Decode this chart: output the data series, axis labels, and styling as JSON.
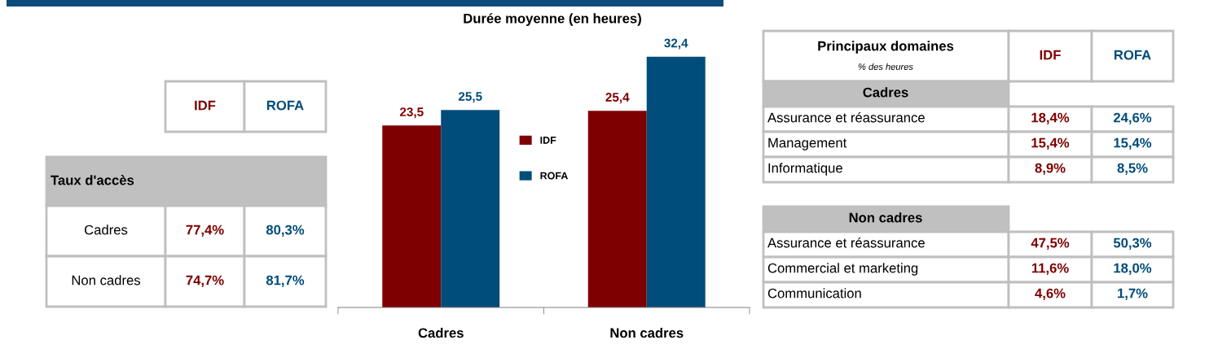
{
  "chart_data": [
    {
      "type": "other",
      "title": "Taux d'accès",
      "categories": [
        "IDF",
        "ROFA"
      ],
      "y_categories": [
        "Cadres",
        "Non cadres"
      ],
      "cell_labels": [
        [
          "77,4%",
          "80,3%"
        ],
        [
          "74,7%",
          "81,7%"
        ]
      ]
    },
    {
      "type": "bar",
      "title": "Durée moyenne (en heures)",
      "categories": [
        "Cadres",
        "Non cadres"
      ],
      "legend": "center",
      "series": [
        {
          "name": "IDF",
          "color": "#7f0000",
          "values": [
            23.5,
            25.4
          ],
          "value_labels": [
            "23,5",
            "25,4"
          ]
        },
        {
          "name": "ROFA",
          "color": "#004c7a",
          "values": [
            25.5,
            32.4
          ],
          "value_labels": [
            "25,5",
            "32,4"
          ]
        }
      ]
    },
    {
      "type": "other",
      "title": "Principaux domaines",
      "subtitle": "% des heures",
      "categories": [
        "IDF",
        "ROFA"
      ],
      "ylabel": "Cadres",
      "y_categories": [
        "Assurance et réassurance",
        "Management",
        "Informatique"
      ],
      "cell_labels": [
        [
          "18,4%",
          "24,6%"
        ],
        [
          "15,4%",
          "15,4%"
        ],
        [
          "8,9%",
          "8,5%"
        ]
      ]
    },
    {
      "type": "other",
      "ylabel": "Non cadres",
      "y_categories": [
        "Assurance et réassurance",
        "Commercial et marketing",
        "Communication"
      ],
      "cell_labels": [
        [
          "47,5%",
          "50,3%"
        ],
        [
          "11,6%",
          "18,0%"
        ],
        [
          "4,6%",
          "1,7%"
        ]
      ]
    }
  ]
}
